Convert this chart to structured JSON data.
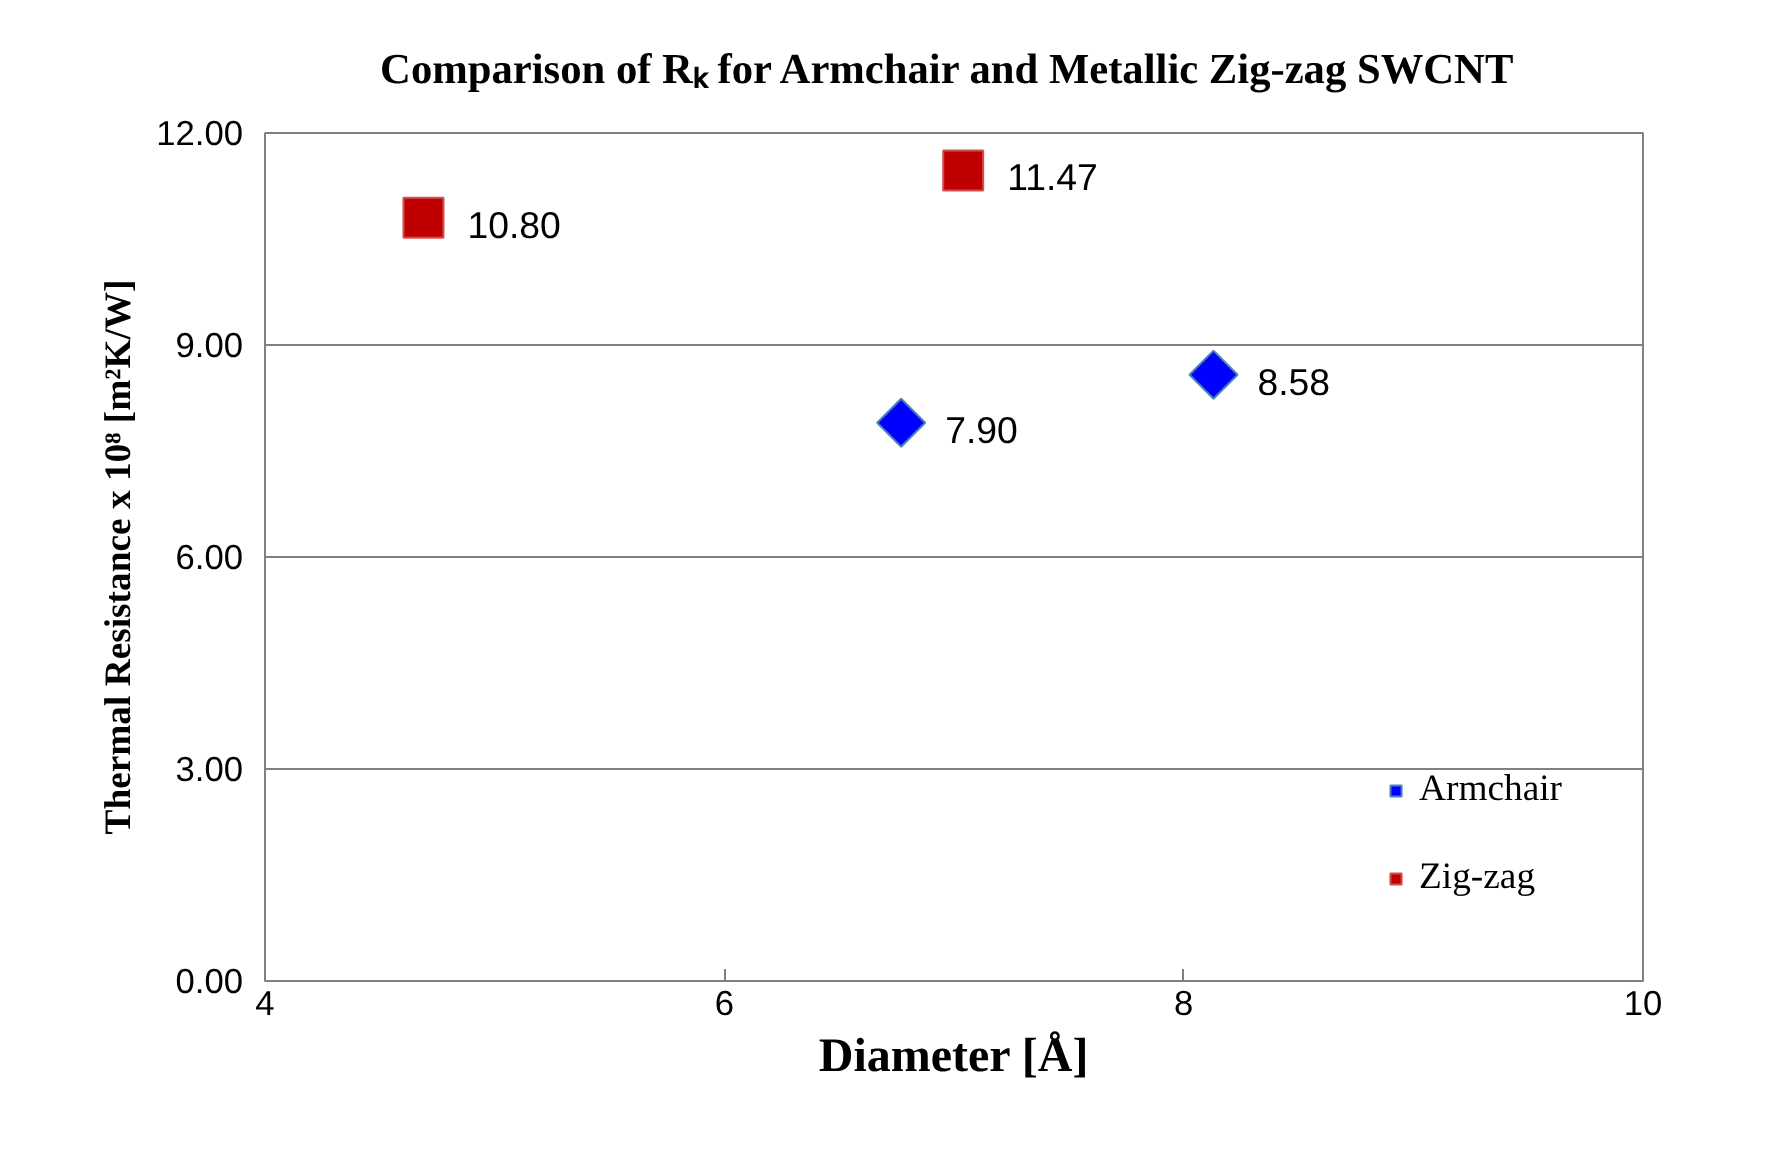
{
  "chart_data": {
    "type": "scatter",
    "title": "Comparison of Rₖ for Armchair  and Metallic Zig-zag SWCNT",
    "xlabel": "Diameter [Å]",
    "ylabel": "Thermal Resistance x 10⁸ [m²K/W]",
    "series": [
      {
        "name": "Armchair",
        "color": "#0000ff",
        "marker": "diamond",
        "x": [
          6.77,
          8.13
        ],
        "values": [
          7.9,
          8.58
        ],
        "value_labels": [
          "7.90",
          "8.58"
        ]
      },
      {
        "name": "Zig-zag",
        "color": "#c00000",
        "marker": "square",
        "x": [
          4.69,
          7.04
        ],
        "values": [
          10.8,
          11.47
        ],
        "value_labels": [
          "10.80",
          "11.47"
        ]
      }
    ],
    "xlim": [
      4,
      10
    ],
    "xticks": [
      4,
      6,
      8,
      10
    ],
    "ylim": [
      0,
      12
    ],
    "yticks": [
      {
        "value": 0,
        "label": "0.00"
      },
      {
        "value": 3,
        "label": "3.00"
      },
      {
        "value": 6,
        "label": "6.00"
      },
      {
        "value": 9,
        "label": "9.00"
      },
      {
        "value": 12,
        "label": "12.00"
      }
    ],
    "grid": "y",
    "legend": "bottom right"
  }
}
